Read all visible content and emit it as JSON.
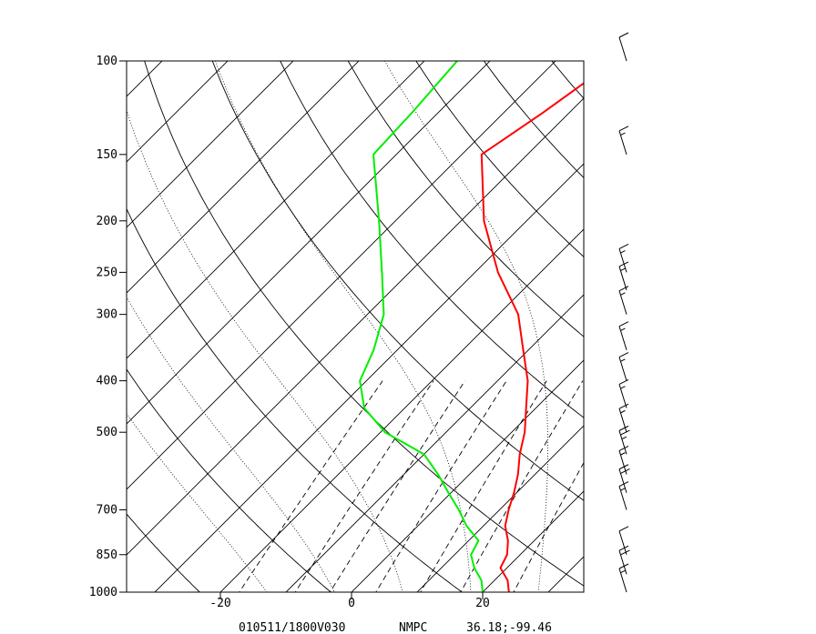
{
  "chart_data": {
    "type": "line",
    "chart_kind": "skew-T log-P sounding",
    "footer": {
      "valid_time": "010511/1800V030",
      "source": "NMPC",
      "location": "36.18;-99.46"
    },
    "y_axis": {
      "units": "hPa",
      "scale": "log",
      "range": [
        1000,
        100
      ],
      "ticks": [
        100,
        150,
        200,
        250,
        300,
        400,
        500,
        700,
        850,
        1000
      ],
      "tick_labels": [
        "100",
        "150",
        "200",
        "250",
        "300",
        "400",
        "500",
        "700",
        "850",
        "1000"
      ]
    },
    "x_axis": {
      "units": "°C (skewed)",
      "range": [
        -34,
        35
      ],
      "ticks": [
        -20,
        0,
        20
      ],
      "tick_labels": [
        "-20",
        "0",
        "20"
      ]
    },
    "grid": true,
    "isotherms_C": [
      -120,
      -110,
      -100,
      -90,
      -80,
      -70,
      -60,
      -50,
      -40,
      -30,
      -20,
      -10,
      0,
      10,
      20,
      30
    ],
    "dry_adiabats_K": [
      230,
      250,
      270,
      290,
      310,
      330,
      350,
      370,
      390,
      410,
      430,
      450
    ],
    "moist_adiabats_C": [
      -10,
      0,
      10,
      20,
      30
    ],
    "mixing_ratios_gkg": [
      1,
      2,
      3,
      5,
      8,
      12,
      20
    ],
    "colors": {
      "temperature": "#ff0000",
      "dewpoint": "#00ee00",
      "grid": "#000000"
    },
    "series": [
      {
        "key": "temperature",
        "points": [
          {
            "p": 1000,
            "t": 24.0
          },
          {
            "p": 950,
            "t": 22.0
          },
          {
            "p": 900,
            "t": 19.0
          },
          {
            "p": 850,
            "t": 18.0
          },
          {
            "p": 800,
            "t": 16.0
          },
          {
            "p": 750,
            "t": 13.3
          },
          {
            "p": 700,
            "t": 11.4
          },
          {
            "p": 650,
            "t": 9.6
          },
          {
            "p": 600,
            "t": 7.4
          },
          {
            "p": 550,
            "t": 4.6
          },
          {
            "p": 500,
            "t": 2.0
          },
          {
            "p": 450,
            "t": -1.5
          },
          {
            "p": 400,
            "t": -5.4
          },
          {
            "p": 350,
            "t": -10.8
          },
          {
            "p": 300,
            "t": -17.0
          },
          {
            "p": 250,
            "t": -26.5
          },
          {
            "p": 200,
            "t": -36.5
          },
          {
            "p": 150,
            "t": -47.0
          },
          {
            "p": 125,
            "t": -44.0
          },
          {
            "p": 100,
            "t": -41.0
          }
        ]
      },
      {
        "key": "dewpoint",
        "points": [
          {
            "p": 1000,
            "t": 20.0
          },
          {
            "p": 950,
            "t": 18.0
          },
          {
            "p": 900,
            "t": 15.0
          },
          {
            "p": 850,
            "t": 12.5
          },
          {
            "p": 800,
            "t": 11.5
          },
          {
            "p": 750,
            "t": 7.4
          },
          {
            "p": 700,
            "t": 3.8
          },
          {
            "p": 650,
            "t": -0.4
          },
          {
            "p": 600,
            "t": -4.8
          },
          {
            "p": 550,
            "t": -10.0
          },
          {
            "p": 500,
            "t": -19.3
          },
          {
            "p": 450,
            "t": -26.2
          },
          {
            "p": 400,
            "t": -31.0
          },
          {
            "p": 350,
            "t": -33.6
          },
          {
            "p": 300,
            "t": -37.5
          },
          {
            "p": 250,
            "t": -44.2
          },
          {
            "p": 200,
            "t": -52.5
          },
          {
            "p": 150,
            "t": -63.5
          },
          {
            "p": 125,
            "t": -64.0
          },
          {
            "p": 100,
            "t": -65.0
          }
        ]
      }
    ],
    "wind_barbs": [
      {
        "p": 1000,
        "flags": 0,
        "full": 1,
        "half": 1
      },
      {
        "p": 925,
        "flags": 0,
        "full": 2,
        "half": 0
      },
      {
        "p": 850,
        "flags": 0,
        "full": 1,
        "half": 0
      },
      {
        "p": 700,
        "flags": 0,
        "full": 1,
        "half": 1
      },
      {
        "p": 650,
        "flags": 0,
        "full": 2,
        "half": 0
      },
      {
        "p": 600,
        "flags": 0,
        "full": 1,
        "half": 1
      },
      {
        "p": 550,
        "flags": 0,
        "full": 2,
        "half": 1
      },
      {
        "p": 500,
        "flags": 0,
        "full": 1,
        "half": 1
      },
      {
        "p": 450,
        "flags": 0,
        "full": 1,
        "half": 1
      },
      {
        "p": 400,
        "flags": 0,
        "full": 1,
        "half": 1
      },
      {
        "p": 350,
        "flags": 0,
        "full": 1,
        "half": 1
      },
      {
        "p": 300,
        "flags": 0,
        "full": 1,
        "half": 1
      },
      {
        "p": 270,
        "flags": 0,
        "full": 1,
        "half": 1
      },
      {
        "p": 250,
        "flags": 0,
        "full": 1,
        "half": 1
      },
      {
        "p": 150,
        "flags": 0,
        "full": 1,
        "half": 1
      },
      {
        "p": 100,
        "flags": 0,
        "full": 1,
        "half": 0
      }
    ]
  }
}
